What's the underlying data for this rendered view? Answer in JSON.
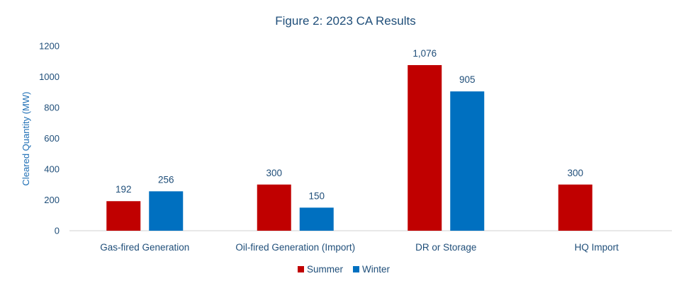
{
  "chart_data": {
    "type": "bar",
    "title": "Figure 2: 2023 CA Results",
    "ylabel": "Cleared Quantity (MW)",
    "xlabel": "",
    "ylim": [
      0,
      1200
    ],
    "yticks": [
      0,
      200,
      400,
      600,
      800,
      1000,
      1200
    ],
    "grid": false,
    "legend_position": "bottom",
    "categories": [
      "Gas-fired Generation",
      "Oil-fired Generation (Import)",
      "DR or Storage",
      "HQ Import"
    ],
    "series": [
      {
        "name": "Summer",
        "color": "#c00000",
        "values": [
          192,
          300,
          1076,
          300
        ],
        "labels": [
          "192",
          "300",
          "1,076",
          "300"
        ]
      },
      {
        "name": "Winter",
        "color": "#0070c0",
        "values": [
          256,
          150,
          905,
          null
        ],
        "labels": [
          "256",
          "150",
          "905",
          ""
        ]
      }
    ],
    "title_color": "#1f4e79",
    "axis_color": "#d0d0d0"
  }
}
